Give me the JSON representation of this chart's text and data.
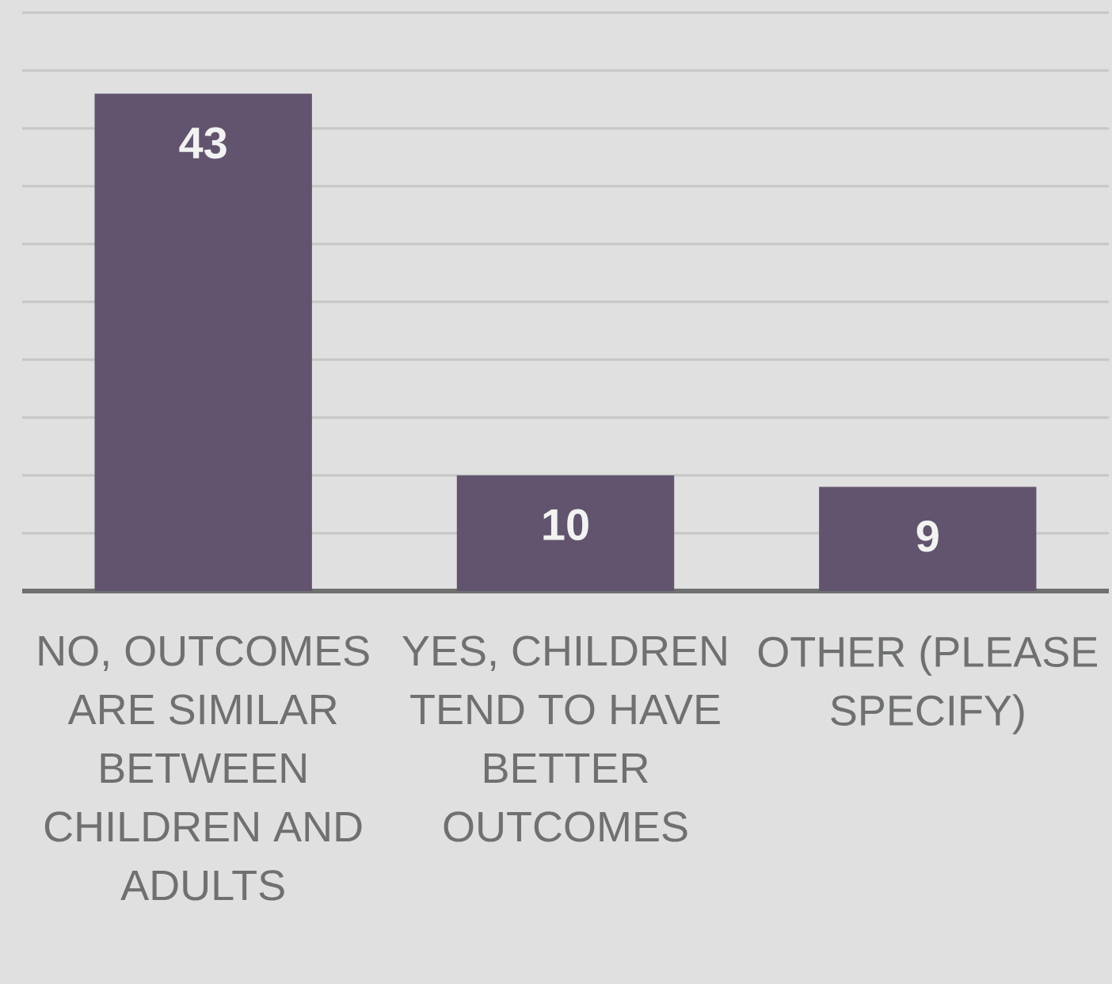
{
  "chart_data": {
    "type": "bar",
    "categories": [
      "NO, OUTCOMES ARE SIMILAR BETWEEN CHILDREN AND ADULTS",
      "YES, CHILDREN TEND TO HAVE BETTER OUTCOMES",
      "OTHER (PLEASE SPECIFY)"
    ],
    "values": [
      43,
      10,
      9
    ],
    "color": "#62546e",
    "ylim": [
      0,
      50
    ],
    "yticks": [
      {
        "value": 0,
        "label": null
      },
      {
        "value": 5,
        "label": null
      },
      {
        "value": 10,
        "label": null
      },
      {
        "value": 15,
        "label": null
      },
      {
        "value": 20,
        "label": null
      },
      {
        "value": 25,
        "label": null
      },
      {
        "value": 30,
        "label": null
      },
      {
        "value": 35,
        "label": null
      },
      {
        "value": 40,
        "label": null
      },
      {
        "value": 45,
        "label": null
      },
      {
        "value": 50,
        "label": null
      }
    ],
    "grid": "y",
    "tick_labels": "x",
    "data_labels": true
  }
}
